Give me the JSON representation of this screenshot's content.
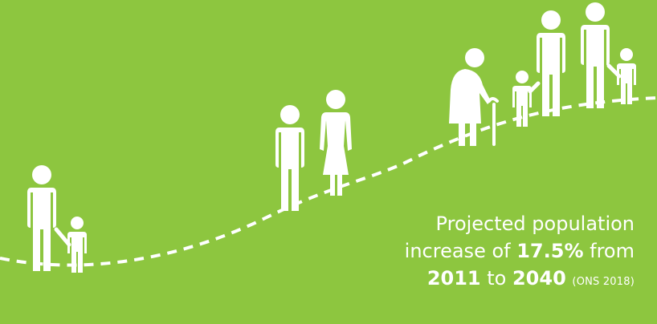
{
  "background_color": "#8dc63f",
  "foreground_color": "#ffffff",
  "caption": {
    "line1": "Projected population",
    "line2_prefix": "increase of",
    "percent": "17.5%",
    "line2_suffix": "from",
    "year_start": "2011",
    "connector": "to",
    "year_end": "2040",
    "source": "(ONS 2018)"
  },
  "figures": [
    {
      "id": "adult-man-with-child-left",
      "icon": "man-icon"
    },
    {
      "id": "small-child-left",
      "icon": "child-icon"
    },
    {
      "id": "young-man",
      "icon": "man-icon"
    },
    {
      "id": "young-woman",
      "icon": "woman-icon"
    },
    {
      "id": "elderly-woman-with-cane",
      "icon": "elderly-woman-icon"
    },
    {
      "id": "child-right-1",
      "icon": "child-icon"
    },
    {
      "id": "adult-right-1",
      "icon": "man-icon"
    },
    {
      "id": "adult-right-2",
      "icon": "man-icon"
    },
    {
      "id": "child-right-2",
      "icon": "child-icon"
    }
  ]
}
